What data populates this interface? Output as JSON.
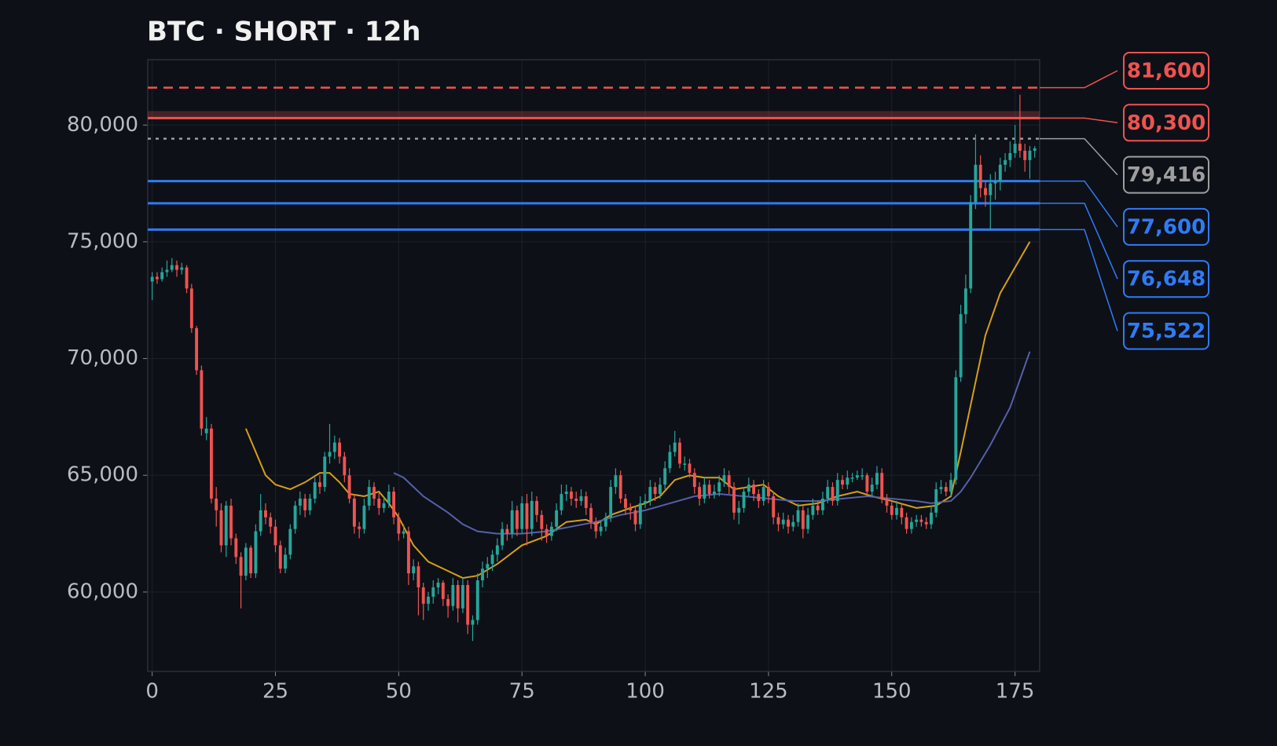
{
  "chart_data": {
    "type": "candlestick",
    "title": "BTC · SHORT · 12h",
    "up_color": "#26a69a",
    "down_color": "#ef5350",
    "xlim": [
      -0.9,
      180
    ],
    "xticks": [
      0,
      25,
      50,
      75,
      100,
      125,
      150,
      175
    ],
    "ylim": [
      56600,
      82800
    ],
    "yticks": [
      {
        "value": 60000,
        "label": "60,000"
      },
      {
        "value": 65000,
        "label": "65,000"
      },
      {
        "value": 70000,
        "label": "70,000"
      },
      {
        "value": 75000,
        "label": "75,000"
      },
      {
        "value": 80000,
        "label": "80,000"
      }
    ],
    "grid": true,
    "ohlc": [
      [
        73300,
        73700,
        72500,
        73500
      ],
      [
        73500,
        73700,
        73200,
        73400
      ],
      [
        73400,
        73900,
        73300,
        73700
      ],
      [
        73700,
        74200,
        73500,
        73800
      ],
      [
        73800,
        74300,
        73700,
        74000
      ],
      [
        74000,
        74200,
        73500,
        73800
      ],
      [
        73800,
        74100,
        73600,
        73900
      ],
      [
        73900,
        74000,
        72800,
        73000
      ],
      [
        73000,
        73200,
        71100,
        71300
      ],
      [
        71300,
        71400,
        69300,
        69500
      ],
      [
        69500,
        69700,
        66700,
        67000
      ],
      [
        66800,
        67500,
        66500,
        67000
      ],
      [
        67000,
        67200,
        63800,
        64000
      ],
      [
        64000,
        64500,
        62800,
        63500
      ],
      [
        63500,
        63800,
        61700,
        62000
      ],
      [
        62000,
        63900,
        61500,
        63700
      ],
      [
        63700,
        64000,
        62000,
        62300
      ],
      [
        62300,
        62500,
        61200,
        61500
      ],
      [
        61500,
        61700,
        59300,
        60700
      ],
      [
        60700,
        62100,
        60500,
        61900
      ],
      [
        61900,
        62000,
        60600,
        60800
      ],
      [
        60800,
        62900,
        60600,
        62600
      ],
      [
        62600,
        64200,
        62400,
        63500
      ],
      [
        63500,
        63800,
        62900,
        63200
      ],
      [
        63200,
        63400,
        62500,
        62800
      ],
      [
        62800,
        63100,
        61700,
        62000
      ],
      [
        62000,
        62200,
        60800,
        61000
      ],
      [
        61000,
        61900,
        60800,
        61600
      ],
      [
        61600,
        62900,
        61400,
        62700
      ],
      [
        62700,
        63900,
        62500,
        63700
      ],
      [
        63700,
        64300,
        63300,
        64000
      ],
      [
        64000,
        64200,
        63200,
        63500
      ],
      [
        63500,
        64200,
        63300,
        64000
      ],
      [
        64000,
        64900,
        63800,
        64700
      ],
      [
        64700,
        65000,
        64200,
        64500
      ],
      [
        64500,
        66000,
        64300,
        65800
      ],
      [
        65800,
        67200,
        65500,
        66000
      ],
      [
        66000,
        66700,
        65700,
        66400
      ],
      [
        66400,
        66600,
        65500,
        65800
      ],
      [
        65800,
        66000,
        64700,
        65000
      ],
      [
        65000,
        65300,
        63800,
        64000
      ],
      [
        64000,
        64200,
        62500,
        62800
      ],
      [
        62800,
        63000,
        62300,
        62700
      ],
      [
        62700,
        64000,
        62500,
        63700
      ],
      [
        63700,
        64800,
        63500,
        64500
      ],
      [
        64500,
        64700,
        63700,
        64000
      ],
      [
        64000,
        64300,
        63300,
        63600
      ],
      [
        63600,
        64100,
        63400,
        63800
      ],
      [
        63800,
        64600,
        63600,
        64300
      ],
      [
        64300,
        64500,
        62900,
        63200
      ],
      [
        63200,
        63400,
        62200,
        62500
      ],
      [
        62500,
        62900,
        62300,
        62600
      ],
      [
        62600,
        62800,
        60300,
        60800
      ],
      [
        60800,
        61400,
        60500,
        61100
      ],
      [
        61100,
        61300,
        59000,
        60200
      ],
      [
        60200,
        60400,
        58800,
        59500
      ],
      [
        59500,
        60000,
        59200,
        59800
      ],
      [
        59800,
        60500,
        59500,
        60200
      ],
      [
        60200,
        60600,
        59900,
        60400
      ],
      [
        60400,
        60500,
        59400,
        59700
      ],
      [
        59700,
        59900,
        58900,
        59400
      ],
      [
        59400,
        60600,
        59200,
        60300
      ],
      [
        60300,
        60500,
        58700,
        59300
      ],
      [
        59300,
        60600,
        59100,
        60300
      ],
      [
        60300,
        60500,
        58200,
        58600
      ],
      [
        58600,
        59000,
        57900,
        58800
      ],
      [
        58800,
        60800,
        58600,
        60500
      ],
      [
        60500,
        61300,
        60200,
        61000
      ],
      [
        61000,
        61500,
        60600,
        61200
      ],
      [
        61200,
        61800,
        60900,
        61600
      ],
      [
        61600,
        62300,
        61300,
        62000
      ],
      [
        62000,
        63000,
        61800,
        62700
      ],
      [
        62700,
        62900,
        62200,
        62500
      ],
      [
        62500,
        63900,
        62300,
        63500
      ],
      [
        63500,
        63700,
        62400,
        62700
      ],
      [
        62700,
        64100,
        62500,
        63800
      ],
      [
        63800,
        64200,
        62000,
        62700
      ],
      [
        62700,
        64300,
        62400,
        63900
      ],
      [
        63900,
        64100,
        63000,
        63300
      ],
      [
        63300,
        63500,
        62200,
        62700
      ],
      [
        62700,
        62900,
        62100,
        62400
      ],
      [
        62400,
        63000,
        62200,
        62800
      ],
      [
        62800,
        63800,
        62600,
        63500
      ],
      [
        63500,
        64600,
        63300,
        64200
      ],
      [
        64200,
        64600,
        63900,
        64300
      ],
      [
        64300,
        64500,
        63700,
        64000
      ],
      [
        64000,
        64300,
        63600,
        63900
      ],
      [
        63900,
        64400,
        63700,
        64100
      ],
      [
        64100,
        64300,
        63300,
        63600
      ],
      [
        63600,
        63800,
        62700,
        63000
      ],
      [
        63000,
        63200,
        62300,
        62600
      ],
      [
        62600,
        63000,
        62400,
        62800
      ],
      [
        62800,
        63400,
        62600,
        63200
      ],
      [
        63200,
        64800,
        63000,
        64500
      ],
      [
        64500,
        65300,
        64200,
        65000
      ],
      [
        65000,
        65200,
        63800,
        64000
      ],
      [
        64000,
        64200,
        63300,
        63600
      ],
      [
        63600,
        63800,
        63100,
        63500
      ],
      [
        63500,
        63700,
        62600,
        62900
      ],
      [
        62900,
        64100,
        62700,
        63800
      ],
      [
        63800,
        64200,
        63600,
        63900
      ],
      [
        63900,
        64800,
        63700,
        64500
      ],
      [
        64500,
        64700,
        63900,
        64200
      ],
      [
        64200,
        64900,
        64000,
        64600
      ],
      [
        64600,
        65600,
        64400,
        65300
      ],
      [
        65300,
        66300,
        65100,
        66000
      ],
      [
        66000,
        66900,
        65800,
        66400
      ],
      [
        66400,
        66600,
        65300,
        65500
      ],
      [
        65500,
        65800,
        65200,
        65500
      ],
      [
        65500,
        65700,
        64900,
        65100
      ],
      [
        65100,
        65300,
        64200,
        64500
      ],
      [
        64500,
        64700,
        63700,
        64000
      ],
      [
        64000,
        64900,
        63800,
        64600
      ],
      [
        64600,
        64800,
        64000,
        64200
      ],
      [
        64200,
        64600,
        64000,
        64300
      ],
      [
        64300,
        65000,
        64100,
        64700
      ],
      [
        64700,
        65300,
        64500,
        65000
      ],
      [
        65000,
        65200,
        64200,
        64500
      ],
      [
        64500,
        64700,
        63100,
        63400
      ],
      [
        63400,
        63900,
        62900,
        63600
      ],
      [
        63600,
        64500,
        63400,
        64300
      ],
      [
        64300,
        64900,
        64100,
        64600
      ],
      [
        64600,
        64800,
        63900,
        64200
      ],
      [
        64200,
        64400,
        63600,
        63900
      ],
      [
        63900,
        64800,
        63700,
        64500
      ],
      [
        64500,
        64700,
        63800,
        64100
      ],
      [
        64100,
        64300,
        62900,
        63200
      ],
      [
        63200,
        63400,
        62600,
        62900
      ],
      [
        62900,
        63400,
        62700,
        63100
      ],
      [
        63100,
        63300,
        62500,
        62800
      ],
      [
        62800,
        63300,
        62600,
        63000
      ],
      [
        63000,
        63800,
        62800,
        63500
      ],
      [
        63500,
        63700,
        62300,
        62700
      ],
      [
        62700,
        63600,
        62500,
        63300
      ],
      [
        63300,
        64000,
        63100,
        63700
      ],
      [
        63700,
        63900,
        63300,
        63500
      ],
      [
        63500,
        64300,
        63300,
        64000
      ],
      [
        64000,
        64800,
        63800,
        64500
      ],
      [
        64500,
        64700,
        63700,
        63900
      ],
      [
        63900,
        65100,
        63700,
        64800
      ],
      [
        64800,
        65000,
        64400,
        64600
      ],
      [
        64600,
        65200,
        64400,
        64900
      ],
      [
        64900,
        65100,
        64700,
        64900
      ],
      [
        64900,
        65200,
        64800,
        65000
      ],
      [
        65000,
        65300,
        64800,
        65000
      ],
      [
        65000,
        65100,
        64100,
        64300
      ],
      [
        64300,
        64900,
        64100,
        64600
      ],
      [
        64600,
        65400,
        64400,
        65100
      ],
      [
        65100,
        65300,
        63800,
        64000
      ],
      [
        64000,
        64200,
        63400,
        63700
      ],
      [
        63700,
        63900,
        63100,
        63300
      ],
      [
        63300,
        63900,
        63100,
        63600
      ],
      [
        63600,
        63800,
        62900,
        63200
      ],
      [
        63200,
        63400,
        62500,
        62700
      ],
      [
        62700,
        63200,
        62500,
        63000
      ],
      [
        63000,
        63300,
        62800,
        63100
      ],
      [
        63100,
        63300,
        62800,
        63000
      ],
      [
        63000,
        63200,
        62700,
        62900
      ],
      [
        62900,
        63700,
        62700,
        63400
      ],
      [
        63400,
        64700,
        63200,
        64400
      ],
      [
        64400,
        64800,
        64200,
        64500
      ],
      [
        64500,
        64700,
        64100,
        64300
      ],
      [
        64300,
        65100,
        64100,
        64800
      ],
      [
        64800,
        69500,
        64600,
        69200
      ],
      [
        69200,
        72300,
        69000,
        71900
      ],
      [
        71900,
        73600,
        71500,
        73000
      ],
      [
        73000,
        77000,
        72800,
        76700
      ],
      [
        76700,
        79600,
        76400,
        78300
      ],
      [
        78300,
        78700,
        76900,
        77300
      ],
      [
        77300,
        77600,
        76500,
        77000
      ],
      [
        77000,
        77900,
        75500,
        77500
      ],
      [
        77500,
        78000,
        76800,
        77600
      ],
      [
        77600,
        78600,
        77200,
        78300
      ],
      [
        78300,
        78800,
        78000,
        78500
      ],
      [
        78500,
        79300,
        78200,
        78800
      ],
      [
        78800,
        80000,
        78600,
        79200
      ],
      [
        79200,
        81300,
        78600,
        78900
      ],
      [
        78900,
        79200,
        78000,
        78500
      ],
      [
        78500,
        79100,
        77700,
        78900
      ],
      [
        78900,
        79100,
        78600,
        79000
      ]
    ],
    "series": [
      {
        "color": "#d4a017",
        "x": [
          19,
          21,
          23,
          25,
          28,
          31,
          34,
          36,
          38,
          40,
          43,
          46,
          48,
          50,
          53,
          56,
          60,
          63,
          66,
          70,
          75,
          80,
          84,
          88,
          90,
          93,
          97,
          100,
          103,
          106,
          109,
          112,
          115,
          118,
          121,
          124,
          127,
          131,
          135,
          139,
          143,
          146,
          150,
          155,
          159,
          162,
          164,
          166,
          169,
          172,
          175,
          178
        ],
        "values": [
          67000,
          66000,
          65000,
          64600,
          64400,
          64700,
          65100,
          65100,
          64700,
          64200,
          64100,
          64300,
          63800,
          63200,
          62000,
          61300,
          60900,
          60600,
          60700,
          61200,
          62000,
          62400,
          63000,
          63100,
          62900,
          63300,
          63600,
          63800,
          64100,
          64800,
          65000,
          64900,
          64900,
          64400,
          64500,
          64600,
          64100,
          63700,
          63800,
          64100,
          64300,
          64100,
          63900,
          63600,
          63700,
          64100,
          66000,
          68000,
          71000,
          72800,
          73900,
          75000
        ]
      },
      {
        "color": "#5560a8",
        "x": [
          49,
          51,
          55,
          60,
          63,
          66,
          70,
          75,
          80,
          85,
          90,
          95,
          100,
          105,
          110,
          115,
          120,
          125,
          130,
          135,
          140,
          145,
          150,
          155,
          158,
          162,
          164,
          166,
          170,
          174,
          178
        ],
        "values": [
          65100,
          64900,
          64100,
          63400,
          62900,
          62600,
          62500,
          62500,
          62600,
          62800,
          63000,
          63300,
          63500,
          63800,
          64100,
          64200,
          64100,
          64000,
          63900,
          63900,
          64000,
          64100,
          64000,
          63900,
          63800,
          63900,
          64300,
          64900,
          66300,
          67900,
          70300
        ]
      }
    ],
    "zone": [
      80300,
      80600
    ],
    "zone_color": "#ef5350",
    "levels": [
      {
        "value": 81600,
        "label": "81,600",
        "color": "#ef5350",
        "style": "dashed"
      },
      {
        "value": 80300,
        "label": "80,300",
        "color": "#ef5350",
        "style": "solid"
      },
      {
        "value": 79416,
        "label": "79,416",
        "color": "#9e9e9e",
        "style": "dotted"
      },
      {
        "value": 77600,
        "label": "77,600",
        "color": "#2f7bf5",
        "style": "solid"
      },
      {
        "value": 76648,
        "label": "76,648",
        "color": "#2f7bf5",
        "style": "solid"
      },
      {
        "value": 75522,
        "label": "75,522",
        "color": "#2f7bf5",
        "style": "solid"
      }
    ]
  }
}
